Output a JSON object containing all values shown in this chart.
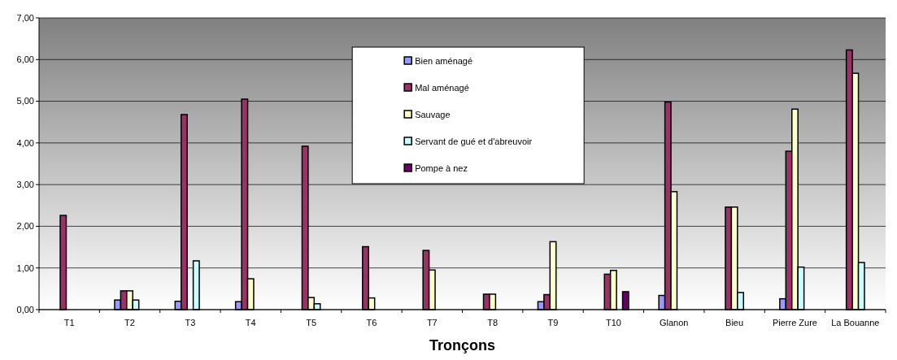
{
  "chart_data": {
    "type": "bar",
    "xlabel": "Tronçons",
    "categories": [
      "T1",
      "T2",
      "T3",
      "T4",
      "T5",
      "T6",
      "T7",
      "T8",
      "T9",
      "T10",
      "Glanon",
      "Bieu",
      "Pierre Zure",
      "La Bouanne"
    ],
    "series": [
      {
        "name": "Bien aménagé",
        "color": "#9999ff",
        "values": [
          null,
          0.23,
          0.2,
          0.19,
          null,
          null,
          null,
          null,
          0.19,
          null,
          0.34,
          null,
          0.26,
          null
        ]
      },
      {
        "name": "Mal aménagé",
        "color": "#993366",
        "values": [
          2.26,
          0.45,
          4.68,
          5.05,
          3.92,
          1.51,
          1.42,
          0.37,
          0.36,
          0.85,
          4.98,
          2.46,
          3.8,
          6.23
        ]
      },
      {
        "name": "Sauvage",
        "color": "#ffffcc",
        "values": [
          null,
          0.45,
          null,
          0.74,
          0.29,
          0.28,
          0.95,
          0.37,
          1.63,
          0.94,
          2.83,
          2.46,
          4.81,
          5.67
        ]
      },
      {
        "name": "Servant de gué et d'abreuvoir",
        "color": "#ccffff",
        "values": [
          null,
          0.23,
          1.17,
          null,
          0.14,
          null,
          null,
          null,
          null,
          null,
          null,
          0.41,
          1.02,
          1.13
        ]
      },
      {
        "name": "Pompe à nez",
        "color": "#660066",
        "values": [
          null,
          null,
          null,
          null,
          null,
          null,
          null,
          null,
          null,
          0.43,
          null,
          null,
          null,
          null
        ]
      }
    ],
    "ylim": [
      0,
      7
    ],
    "yticks": [
      {
        "value": 0,
        "label": "0,00"
      },
      {
        "value": 1,
        "label": "1,00"
      },
      {
        "value": 2,
        "label": "2,00"
      },
      {
        "value": 3,
        "label": "3,00"
      },
      {
        "value": 4,
        "label": "4,00"
      },
      {
        "value": 5,
        "label": "5,00"
      },
      {
        "value": 6,
        "label": "6,00"
      },
      {
        "value": 7,
        "label": "7,00"
      }
    ],
    "grid": "y",
    "legend": "top"
  }
}
